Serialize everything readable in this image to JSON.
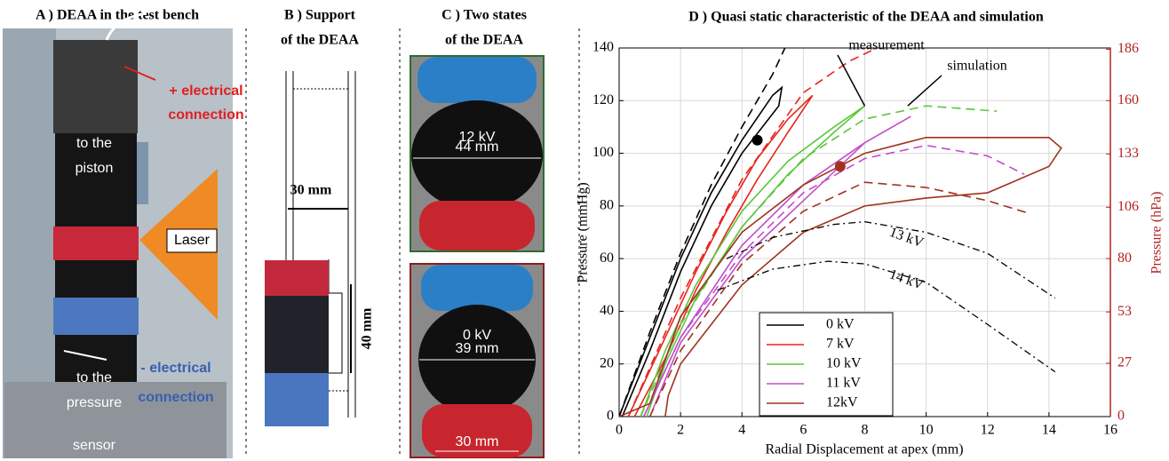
{
  "panels": {
    "a": {
      "title": "A ) DEAA in the test bench",
      "plus": [
        "+ electrical",
        "connection"
      ],
      "piston": [
        "to the",
        "piston"
      ],
      "laser": "Laser",
      "minus": [
        "- electrical",
        "connection"
      ],
      "sensor": [
        "to the",
        "pressure",
        "sensor"
      ]
    },
    "b": {
      "title": [
        "B ) Support",
        "of the DEAA"
      ],
      "width": "30 mm",
      "height": "40 mm"
    },
    "c": {
      "title": [
        "C ) Two states",
        "of the DEAA"
      ],
      "top_voltage": "12 kV",
      "top_width": "44 mm",
      "bottom_voltage": "0 kV",
      "bottom_width": "39 mm",
      "bottom_base": "30 mm"
    }
  },
  "chart_data": {
    "type": "line",
    "title": "D ) Quasi static characteristic of the DEAA and simulation",
    "xlabel": "Radial Displacement at apex (mm)",
    "ylabel": "Pressure (mmHg)",
    "y2label": "Pressure (hPa)",
    "xlim": [
      0,
      16
    ],
    "xticks": [
      0,
      2,
      4,
      6,
      8,
      10,
      12,
      14,
      16
    ],
    "ylim": [
      0,
      140
    ],
    "yticks": [
      0,
      20,
      40,
      60,
      80,
      100,
      120,
      140
    ],
    "y2lim": [
      0,
      186.65
    ],
    "y2ticks": [
      0,
      27,
      53,
      80,
      106,
      133,
      160,
      186
    ],
    "grid": true,
    "legend": "lower center",
    "series": [
      {
        "name": "0 kV",
        "color": "#000000",
        "measurement": {
          "x": [
            0,
            1,
            2,
            3,
            4,
            5,
            5.3,
            5.2,
            4,
            3,
            2,
            1,
            0.1
          ],
          "values": [
            0,
            30,
            60,
            85,
            105,
            122,
            125,
            118,
            100,
            80,
            55,
            25,
            0
          ]
        },
        "simulation": {
          "x": [
            0,
            1,
            2,
            3,
            4,
            5,
            5.4
          ],
          "values": [
            0,
            32,
            62,
            88,
            110,
            130,
            140
          ]
        }
      },
      {
        "name": "7 kV",
        "color": "#e8241c",
        "measurement": {
          "x": [
            0.3,
            1.5,
            2.5,
            3.5,
            4.5,
            5.5,
            6.3,
            5.5,
            4.5,
            3.5,
            2.5,
            1.5,
            0.5
          ],
          "values": [
            0,
            30,
            55,
            78,
            98,
            113,
            122,
            108,
            90,
            70,
            48,
            22,
            0
          ]
        },
        "simulation": {
          "x": [
            0.3,
            2,
            4,
            6,
            7.5,
            8.4
          ],
          "values": [
            0,
            45,
            90,
            123,
            135,
            140
          ]
        }
      },
      {
        "name": "10 kV",
        "color": "#5cc63c",
        "measurement": {
          "x": [
            0.7,
            1.5,
            2.5,
            4,
            5.5,
            7,
            8,
            7,
            5.5,
            4,
            2.5,
            1.5,
            0.9
          ],
          "values": [
            0,
            25,
            50,
            78,
            97,
            110,
            118,
            108,
            92,
            72,
            45,
            20,
            0
          ]
        },
        "simulation": {
          "x": [
            0.7,
            2,
            4,
            6,
            8,
            10,
            12.3
          ],
          "values": [
            0,
            35,
            72,
            98,
            113,
            118,
            116
          ]
        }
      },
      {
        "name": "11 kV",
        "color": "#c04ec8",
        "measurement": {
          "x": [
            0.8,
            2,
            4,
            6,
            8,
            9.5,
            8,
            6,
            4,
            2,
            1
          ],
          "values": [
            0,
            30,
            65,
            88,
            104,
            114,
            104,
            82,
            60,
            28,
            0
          ]
        },
        "simulation": {
          "x": [
            0.8,
            2,
            4,
            6,
            8,
            10,
            12,
            13.2
          ],
          "values": [
            0,
            30,
            62,
            85,
            98,
            103,
            99,
            92
          ]
        }
      },
      {
        "name": "12kV",
        "color": "#a0321e",
        "measurement": {
          "x": [
            1.5,
            1.6,
            2,
            4,
            6,
            8,
            10,
            12,
            14,
            14.4,
            14,
            12,
            10,
            8,
            6,
            4,
            2,
            1,
            0
          ],
          "values": [
            0,
            8,
            20,
            50,
            70,
            80,
            83,
            85,
            95,
            102,
            106,
            106,
            106,
            100,
            88,
            70,
            38,
            5,
            0
          ]
        },
        "simulation": {
          "x": [
            1,
            2,
            4,
            6,
            8,
            10,
            12,
            13.4
          ],
          "values": [
            0,
            25,
            58,
            78,
            89,
            87,
            82,
            77
          ]
        }
      }
    ],
    "extra_curves": [
      {
        "label": "13 kV",
        "x": [
          3.5,
          5,
          7,
          8,
          10,
          12,
          14.2
        ],
        "values": [
          60,
          68,
          73,
          74,
          70,
          62,
          45
        ]
      },
      {
        "label": "14 kV",
        "x": [
          3.2,
          5,
          6.8,
          8,
          10,
          12,
          14.2
        ],
        "values": [
          48,
          56,
          59,
          58,
          51,
          35,
          17
        ]
      }
    ],
    "points": [
      {
        "x": 4.5,
        "y": 105,
        "color": "#000000"
      },
      {
        "x": 7.2,
        "y": 95,
        "color": "#a0321e"
      }
    ],
    "annotations": [
      "measurement",
      "simulation"
    ]
  }
}
